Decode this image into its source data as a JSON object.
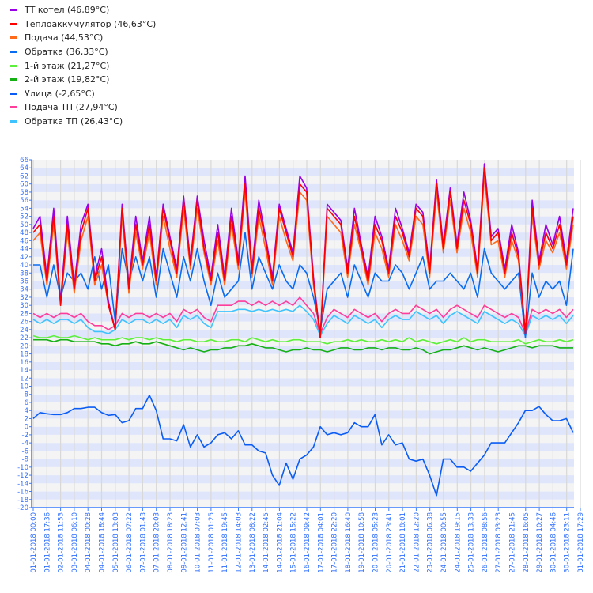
{
  "chart_data": {
    "type": "line",
    "title": "",
    "xlabel": "",
    "ylabel": "",
    "ylim": [
      -20,
      66
    ],
    "ytick_step": 2,
    "grid": true,
    "legend_position": "top-left",
    "x_tick_labels": [
      "01-01-2018 00:00",
      "01-01-2018 17:36",
      "02-01-2018 11:53",
      "03-01-2018 06:10",
      "04-01-2018 00:28",
      "04-01-2018 18:44",
      "05-01-2018 13:03",
      "06-01-2018 07:22",
      "07-01-2018 01:43",
      "07-01-2018 20:03",
      "08-01-2018 18:23",
      "09-01-2018 12:41",
      "10-01-2018 07:03",
      "11-01-2018 01:25",
      "11-01-2018 19:45",
      "12-01-2018 14:03",
      "13-01-2018 08:22",
      "14-01-2018 02:45",
      "14-01-2018 21:04",
      "15-01-2018 15:22",
      "16-01-2018 09:42",
      "17-01-2018 04:01",
      "17-01-2018 22:20",
      "18-01-2018 16:40",
      "19-01-2018 10:58",
      "20-01-2018 05:23",
      "20-01-2018 23:41",
      "21-01-2018 18:01",
      "22-01-2018 12:20",
      "23-01-2018 06:38",
      "24-01-2018 00:55",
      "24-01-2018 19:15",
      "25-01-2018 13:33",
      "26-01-2018 08:56",
      "27-01-2018 03:23",
      "27-01-2018 21:45",
      "28-01-2018 16:05",
      "29-01-2018 10:27",
      "30-01-2018 04:46",
      "30-01-2018 23:11",
      "31-01-2018 17:29"
    ],
    "series": [
      {
        "name": "ТТ котел (46,89°C)",
        "color": "#9a00e6",
        "values": [
          49,
          52,
          37,
          54,
          31,
          52,
          35,
          50,
          55,
          37,
          44,
          31,
          24,
          55,
          35,
          52,
          41,
          52,
          37,
          55,
          47,
          39,
          57,
          41,
          57,
          46,
          37,
          50,
          37,
          54,
          41,
          62,
          39,
          56,
          47,
          37,
          55,
          49,
          43,
          62,
          59,
          37,
          22,
          55,
          53,
          51,
          39,
          54,
          45,
          37,
          52,
          47,
          39,
          54,
          49,
          43,
          55,
          53,
          39,
          61,
          45,
          59,
          45,
          58,
          51,
          39,
          65,
          47,
          49,
          39,
          50,
          43,
          23,
          56,
          41,
          50,
          45,
          52,
          41,
          54
        ]
      },
      {
        "name": "Теплоаккумулятор (46,63°C)",
        "color": "#ff0000",
        "values": [
          48,
          50,
          36,
          52,
          30,
          50,
          34,
          48,
          54,
          36,
          42,
          30,
          24,
          54,
          34,
          50,
          40,
          50,
          36,
          54,
          46,
          38,
          56,
          40,
          56,
          44,
          36,
          48,
          36,
          52,
          40,
          60,
          38,
          54,
          46,
          36,
          54,
          48,
          42,
          60,
          58,
          36,
          22,
          54,
          52,
          50,
          38,
          52,
          44,
          36,
          50,
          46,
          38,
          52,
          48,
          42,
          54,
          52,
          38,
          60,
          44,
          58,
          44,
          56,
          50,
          38,
          64,
          46,
          48,
          38,
          48,
          42,
          23,
          54,
          40,
          48,
          44,
          50,
          40,
          52
        ]
      },
      {
        "name": "Подача (44,53°C)",
        "color": "#ff6a1a",
        "values": [
          46,
          48,
          35,
          50,
          30,
          48,
          33,
          46,
          52,
          35,
          40,
          30,
          24,
          52,
          33,
          48,
          39,
          48,
          35,
          52,
          44,
          37,
          54,
          39,
          54,
          43,
          35,
          46,
          35,
          50,
          39,
          58,
          37,
          52,
          44,
          35,
          52,
          46,
          41,
          58,
          56,
          35,
          22,
          52,
          50,
          48,
          37,
          50,
          43,
          35,
          48,
          44,
          37,
          50,
          46,
          41,
          52,
          50,
          37,
          58,
          43,
          56,
          43,
          54,
          48,
          37,
          62,
          45,
          46,
          37,
          46,
          41,
          23,
          52,
          39,
          46,
          43,
          48,
          39,
          50
        ]
      },
      {
        "name": "Обратка (36,33°C)",
        "color": "#0a6cf0",
        "values": [
          40,
          40,
          32,
          40,
          32,
          38,
          36,
          38,
          34,
          42,
          34,
          40,
          26,
          44,
          36,
          42,
          36,
          42,
          32,
          44,
          38,
          32,
          42,
          36,
          44,
          36,
          30,
          38,
          32,
          34,
          36,
          48,
          34,
          42,
          38,
          34,
          40,
          36,
          34,
          40,
          38,
          32,
          24,
          34,
          36,
          38,
          32,
          40,
          36,
          32,
          38,
          36,
          36,
          40,
          38,
          34,
          38,
          42,
          34,
          36,
          36,
          38,
          36,
          34,
          38,
          32,
          44,
          38,
          36,
          34,
          36,
          38,
          22,
          38,
          32,
          36,
          34,
          36,
          30,
          44
        ]
      },
      {
        "name": "1-й этаж (21,27°C)",
        "color": "#5cf03a",
        "values": [
          22.5,
          22,
          22,
          22.5,
          22,
          22,
          22.5,
          22,
          21.5,
          22,
          21.5,
          21.5,
          21.5,
          22,
          21.5,
          22,
          22,
          21.5,
          22,
          21.5,
          21.5,
          21,
          21.5,
          21.5,
          21,
          21,
          21.5,
          21,
          21,
          21.5,
          21.5,
          21,
          22,
          21.5,
          21,
          21.5,
          21,
          21,
          21.5,
          21.5,
          21,
          21,
          21,
          20.5,
          21,
          21,
          21.5,
          21,
          21.5,
          21,
          21,
          21.5,
          21,
          21.5,
          21,
          22,
          21,
          21.5,
          21,
          20.5,
          21,
          21.5,
          21,
          22,
          21,
          21.5,
          21.5,
          21,
          21,
          21,
          21,
          21.5,
          20.5,
          21,
          21.5,
          21,
          21,
          21.5,
          21,
          21.5
        ]
      },
      {
        "name": "2-й этаж (19,82°C)",
        "color": "#14b014",
        "values": [
          21.5,
          21.5,
          21.5,
          21,
          21.5,
          21.5,
          21,
          21,
          21,
          21,
          20.5,
          20.5,
          20,
          20.5,
          20.5,
          21,
          20.5,
          20.5,
          21,
          20.5,
          20,
          19.5,
          19,
          19.5,
          19,
          18.5,
          19,
          19,
          19.5,
          19.5,
          20,
          20,
          20.5,
          20,
          19.5,
          19.5,
          19,
          18.5,
          19,
          19,
          19.5,
          19,
          19,
          18.5,
          19,
          19.5,
          19.5,
          19,
          19,
          19.5,
          19.5,
          19,
          19.5,
          19.5,
          19,
          19,
          19.5,
          19,
          18,
          18.5,
          19,
          19,
          19.5,
          20,
          19.5,
          19,
          19.5,
          19,
          18.5,
          19,
          19.5,
          20,
          20,
          19.5,
          20,
          20,
          20,
          19.5,
          19.5,
          19.5
        ]
      },
      {
        "name": "Улица (-2,65°C)",
        "color": "#0a5cf5",
        "values": [
          2,
          3.5,
          3.2,
          3,
          3,
          3.5,
          4.5,
          4.5,
          4.8,
          4.8,
          3.5,
          2.8,
          3,
          1,
          1.5,
          4.5,
          4.5,
          7.8,
          4,
          -3,
          -3,
          -3.5,
          0.5,
          -5,
          -2,
          -5,
          -4,
          -2,
          -1.5,
          -3,
          -1,
          -4.5,
          -4.5,
          -6,
          -6.5,
          -12,
          -14.5,
          -9,
          -13,
          -8,
          -7,
          -5,
          0,
          -2,
          -1.5,
          -2,
          -1.5,
          1,
          0,
          0,
          3,
          -4.5,
          -2,
          -4.5,
          -4,
          -8,
          -8.5,
          -8,
          -12,
          -17,
          -8,
          -8,
          -10,
          -10,
          -11,
          -9,
          -7,
          -4,
          -4,
          -4,
          -1.5,
          1,
          4,
          4,
          5,
          3,
          1.5,
          1.5,
          2,
          -1.5
        ]
      },
      {
        "name": "Подача ТП (27,94°C)",
        "color": "#ff3d9a",
        "values": [
          28,
          27,
          28,
          27,
          28,
          28,
          27,
          28,
          26,
          25,
          25,
          24,
          25,
          28,
          27,
          28,
          28,
          27,
          28,
          27,
          28,
          26,
          29,
          28,
          29,
          27,
          26,
          30,
          30,
          30,
          31,
          31,
          30,
          31,
          30,
          31,
          30,
          31,
          30,
          32,
          30,
          28,
          23,
          27,
          29,
          28,
          27,
          29,
          28,
          27,
          28,
          26,
          28,
          29,
          28,
          28,
          30,
          29,
          28,
          29,
          27,
          29,
          30,
          29,
          28,
          27,
          30,
          29,
          28,
          27,
          28,
          27,
          23,
          29,
          28,
          29,
          28,
          29,
          27,
          29
        ]
      },
      {
        "name": "Обратка ТП (26,43°C)",
        "color": "#3ec3ff",
        "values": [
          26.5,
          25.5,
          26.5,
          25.5,
          26.5,
          26.5,
          25.5,
          26.5,
          24.5,
          23.5,
          23.5,
          23,
          24,
          26.5,
          25.5,
          26.5,
          26.5,
          25.5,
          26.5,
          25.5,
          26.5,
          24.5,
          27.5,
          26.5,
          27.5,
          25.5,
          24.5,
          28.5,
          28.5,
          28.5,
          29,
          29,
          28.5,
          29,
          28.5,
          29,
          28.5,
          29,
          28.5,
          30,
          28.5,
          26.5,
          22.5,
          25.5,
          27.5,
          26.5,
          25.5,
          27.5,
          26.5,
          25.5,
          26.5,
          24.5,
          26.5,
          27.5,
          26.5,
          26.5,
          28.5,
          27.5,
          26.5,
          27.5,
          25.5,
          27.5,
          28.5,
          27.5,
          26.5,
          25.5,
          28.5,
          27.5,
          26.5,
          25.5,
          26.5,
          25.5,
          22.5,
          27.5,
          26.5,
          27.5,
          26.5,
          27.5,
          25.5,
          27.5
        ]
      }
    ]
  }
}
